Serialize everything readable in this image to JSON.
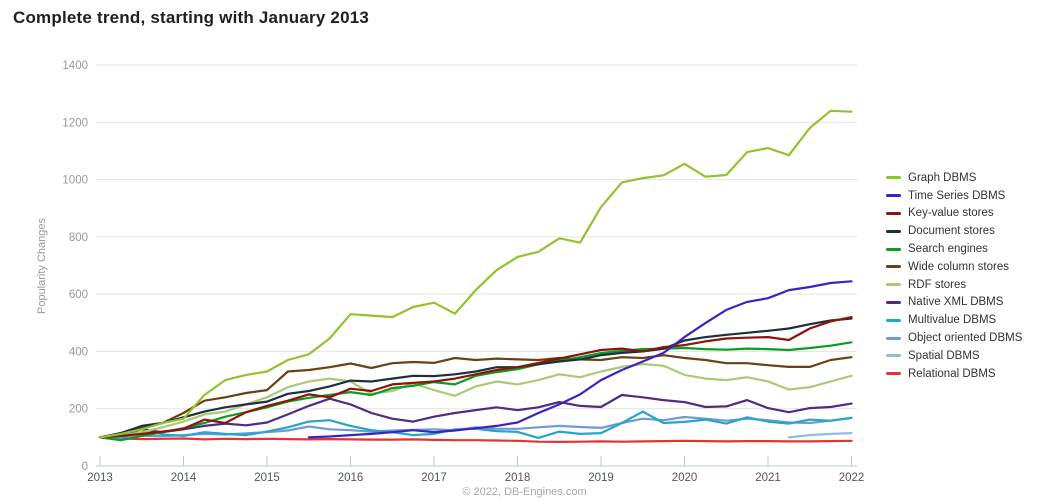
{
  "page": {
    "title": "Complete trend, starting with January 2013",
    "footer": "© 2022, DB-Engines.com"
  },
  "colors": {
    "background": "#ffffff",
    "grid": "#e2e2e2",
    "axis": "#b9cbd6",
    "y_tick_label": "#999999",
    "x_tick_label": "#555555",
    "legend_text": "#333333",
    "title": "#1f1f1f",
    "footer": "#a8a8a8"
  },
  "chart_data": {
    "type": "line",
    "title": "Complete trend, starting with January 2013",
    "xlabel": "",
    "ylabel": "Popularity Changes",
    "ylim": [
      0,
      1400
    ],
    "yticks": [
      0,
      200,
      400,
      600,
      800,
      1000,
      1200,
      1400
    ],
    "xticks": [
      2013,
      2014,
      2015,
      2016,
      2017,
      2018,
      2019,
      2020,
      2021,
      2022
    ],
    "grid": true,
    "legend_position": "right",
    "x_step": 0.25,
    "series": [
      {
        "name": "Graph DBMS",
        "color": "#91c32d",
        "x_start": 2013.0,
        "values": [
          100,
          112,
          128,
          150,
          165,
          248,
          300,
          318,
          330,
          370,
          390,
          445,
          530,
          525,
          520,
          555,
          570,
          532,
          614,
          684,
          730,
          748,
          795,
          780,
          904,
          990,
          1005,
          1015,
          1055,
          1010,
          1016,
          1096,
          1110,
          1085,
          1180,
          1240,
          1237
        ]
      },
      {
        "name": "Time Series DBMS",
        "color": "#3d22c3",
        "x_start": 2015.5,
        "values": [
          100,
          103,
          108,
          112,
          118,
          125,
          118,
          124,
          132,
          140,
          152,
          185,
          215,
          250,
          300,
          335,
          365,
          395,
          450,
          499,
          545,
          573,
          586,
          614,
          625,
          639,
          645
        ]
      },
      {
        "name": "Key-value stores",
        "color": "#8e1309",
        "x_start": 2013.0,
        "values": [
          100,
          105,
          112,
          120,
          130,
          162,
          150,
          188,
          210,
          228,
          250,
          240,
          270,
          262,
          285,
          290,
          295,
          305,
          320,
          335,
          345,
          360,
          375,
          390,
          405,
          410,
          400,
          415,
          422,
          435,
          445,
          448,
          450,
          440,
          480,
          505,
          520
        ]
      },
      {
        "name": "Document stores",
        "color": "#1d3040",
        "x_start": 2013.0,
        "values": [
          100,
          115,
          140,
          150,
          170,
          190,
          205,
          215,
          225,
          252,
          262,
          278,
          298,
          295,
          305,
          315,
          314,
          320,
          330,
          345,
          345,
          355,
          365,
          372,
          387,
          395,
          400,
          410,
          438,
          450,
          458,
          465,
          472,
          480,
          495,
          508,
          515
        ]
      },
      {
        "name": "Search engines",
        "color": "#0b9c23",
        "x_start": 2013.0,
        "values": [
          100,
          90,
          105,
          118,
          132,
          150,
          172,
          188,
          205,
          225,
          238,
          248,
          258,
          248,
          272,
          280,
          293,
          285,
          315,
          328,
          338,
          355,
          368,
          380,
          394,
          402,
          408,
          410,
          412,
          408,
          406,
          410,
          408,
          405,
          412,
          420,
          432
        ]
      },
      {
        "name": "Wide column stores",
        "color": "#6e3f12",
        "x_start": 2013.0,
        "values": [
          100,
          115,
          132,
          150,
          185,
          228,
          240,
          255,
          265,
          330,
          335,
          345,
          358,
          342,
          359,
          363,
          360,
          377,
          370,
          375,
          372,
          370,
          377,
          372,
          370,
          380,
          377,
          387,
          377,
          370,
          359,
          359,
          352,
          346,
          346,
          370,
          380
        ]
      },
      {
        "name": "RDF stores",
        "color": "#aaca75",
        "x_start": 2013.0,
        "values": [
          100,
          105,
          118,
          135,
          155,
          180,
          190,
          215,
          240,
          275,
          295,
          305,
          295,
          252,
          262,
          288,
          265,
          245,
          278,
          295,
          285,
          300,
          320,
          310,
          330,
          346,
          356,
          350,
          318,
          305,
          300,
          310,
          295,
          267,
          275,
          295,
          315
        ]
      },
      {
        "name": "Native XML DBMS",
        "color": "#4e2c82",
        "x_start": 2013.0,
        "values": [
          100,
          110,
          128,
          118,
          128,
          140,
          148,
          142,
          152,
          180,
          210,
          235,
          215,
          185,
          165,
          155,
          172,
          185,
          195,
          205,
          195,
          205,
          223,
          210,
          206,
          248,
          240,
          230,
          223,
          206,
          208,
          230,
          202,
          188,
          202,
          206,
          218
        ]
      },
      {
        "name": "Multivalue DBMS",
        "color": "#27a5c9",
        "x_start": 2013.0,
        "values": [
          100,
          95,
          130,
          110,
          105,
          118,
          112,
          108,
          120,
          135,
          155,
          160,
          140,
          125,
          118,
          108,
          112,
          128,
          130,
          122,
          119,
          98,
          120,
          112,
          115,
          150,
          190,
          150,
          154,
          162,
          148,
          170,
          155,
          148,
          162,
          158,
          168
        ]
      },
      {
        "name": "Object oriented DBMS",
        "color": "#6f9ad3",
        "x_start": 2013.0,
        "values": [
          100,
          102,
          106,
          104,
          108,
          112,
          110,
          114,
          118,
          124,
          138,
          128,
          125,
          120,
          124,
          126,
          128,
          125,
          135,
          130,
          130,
          135,
          140,
          136,
          133,
          150,
          165,
          160,
          171,
          165,
          158,
          165,
          160,
          152,
          150,
          158,
          168
        ]
      },
      {
        "name": "Spatial DBMS",
        "color": "#8fbde8",
        "x_start": 2021.25,
        "values": [
          100,
          108,
          112,
          115
        ]
      },
      {
        "name": "Relational DBMS",
        "color": "#e43333",
        "x_start": 2013.0,
        "values": [
          100,
          96,
          94,
          95,
          96,
          93,
          95,
          94,
          95,
          94,
          93,
          94,
          93,
          92,
          92,
          93,
          91,
          90,
          90,
          89,
          88,
          85,
          84,
          85,
          86,
          85,
          86,
          87,
          88,
          87,
          86,
          87,
          87,
          86,
          86,
          87,
          88
        ]
      }
    ]
  }
}
